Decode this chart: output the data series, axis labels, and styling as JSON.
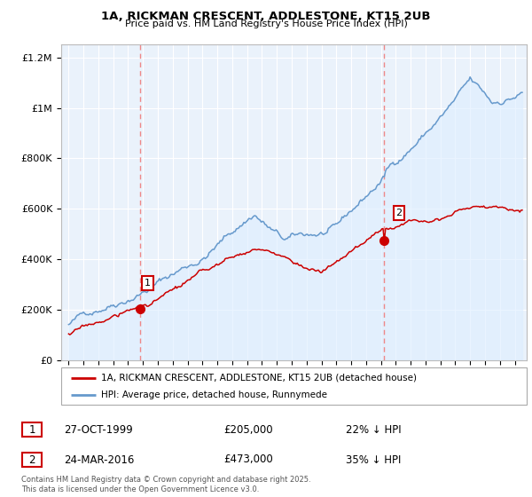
{
  "title": "1A, RICKMAN CRESCENT, ADDLESTONE, KT15 2UB",
  "subtitle": "Price paid vs. HM Land Registry's House Price Index (HPI)",
  "legend_line1": "1A, RICKMAN CRESCENT, ADDLESTONE, KT15 2UB (detached house)",
  "legend_line2": "HPI: Average price, detached house, Runnymede",
  "sale1_date": "27-OCT-1999",
  "sale1_price": "£205,000",
  "sale1_hpi": "22% ↓ HPI",
  "sale1_year": 1999.82,
  "sale1_value": 205000,
  "sale2_date": "24-MAR-2016",
  "sale2_price": "£473,000",
  "sale2_hpi": "35% ↓ HPI",
  "sale2_year": 2016.22,
  "sale2_value": 473000,
  "red_line_color": "#cc0000",
  "blue_line_color": "#6699cc",
  "blue_fill_color": "#ddeeff",
  "vline_color": "#ee8888",
  "plot_bg_color": "#eaf2fb",
  "ylim": [
    0,
    1250000
  ],
  "xlim_start": 1994.5,
  "xlim_end": 2025.8,
  "footer": "Contains HM Land Registry data © Crown copyright and database right 2025.\nThis data is licensed under the Open Government Licence v3.0.",
  "yticks": [
    0,
    200000,
    400000,
    600000,
    800000,
    1000000,
    1200000
  ],
  "ytick_labels": [
    "£0",
    "£200K",
    "£400K",
    "£600K",
    "£800K",
    "£1M",
    "£1.2M"
  ],
  "xtick_years": [
    1995,
    1996,
    1997,
    1998,
    1999,
    2000,
    2001,
    2002,
    2003,
    2004,
    2005,
    2006,
    2007,
    2008,
    2009,
    2010,
    2011,
    2012,
    2013,
    2014,
    2015,
    2016,
    2017,
    2018,
    2019,
    2020,
    2021,
    2022,
    2023,
    2024,
    2025
  ]
}
